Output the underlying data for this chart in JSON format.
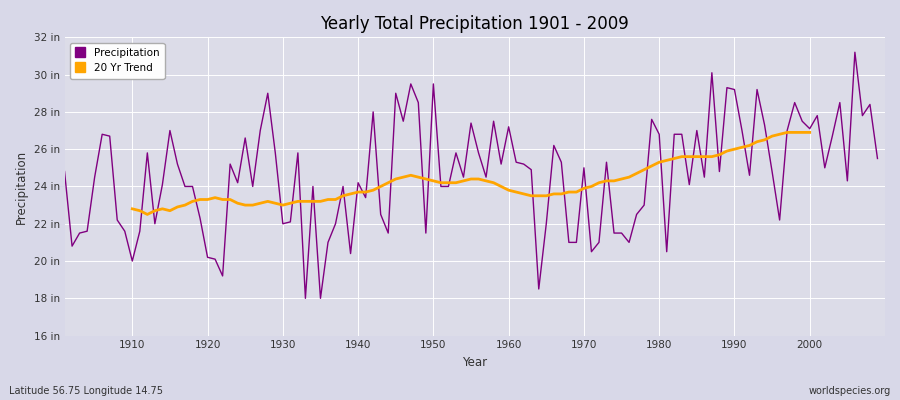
{
  "title": "Yearly Total Precipitation 1901 - 2009",
  "xlabel": "Year",
  "ylabel": "Precipitation",
  "footnote_left": "Latitude 56.75 Longitude 14.75",
  "footnote_right": "worldspecies.org",
  "ylim": [
    16,
    32
  ],
  "yticks": [
    16,
    18,
    20,
    22,
    24,
    26,
    28,
    30,
    32
  ],
  "ytick_labels": [
    "16 in",
    "18 in",
    "20 in",
    "22 in",
    "24 in",
    "26 in",
    "28 in",
    "30 in",
    "32 in"
  ],
  "fig_bg_color": "#d8d8e8",
  "plot_bg_color": "#dcdce8",
  "grid_color": "#c0c0d0",
  "precip_color": "#800080",
  "trend_color": "#FFA500",
  "years": [
    1901,
    1902,
    1903,
    1904,
    1905,
    1906,
    1907,
    1908,
    1909,
    1910,
    1911,
    1912,
    1913,
    1914,
    1915,
    1916,
    1917,
    1918,
    1919,
    1920,
    1921,
    1922,
    1923,
    1924,
    1925,
    1926,
    1927,
    1928,
    1929,
    1930,
    1931,
    1932,
    1933,
    1934,
    1935,
    1936,
    1937,
    1938,
    1939,
    1940,
    1941,
    1942,
    1943,
    1944,
    1945,
    1946,
    1947,
    1948,
    1949,
    1950,
    1951,
    1952,
    1953,
    1954,
    1955,
    1956,
    1957,
    1958,
    1959,
    1960,
    1961,
    1962,
    1963,
    1964,
    1965,
    1966,
    1967,
    1968,
    1969,
    1970,
    1971,
    1972,
    1973,
    1974,
    1975,
    1976,
    1977,
    1978,
    1979,
    1980,
    1981,
    1982,
    1983,
    1984,
    1985,
    1986,
    1987,
    1988,
    1989,
    1990,
    1991,
    1992,
    1993,
    1994,
    1995,
    1996,
    1997,
    1998,
    1999,
    2000,
    2001,
    2002,
    2003,
    2004,
    2005,
    2006,
    2007,
    2008,
    2009
  ],
  "precip": [
    24.8,
    20.8,
    21.5,
    21.6,
    24.5,
    26.8,
    26.7,
    22.2,
    21.6,
    20.0,
    21.6,
    25.8,
    22.0,
    24.1,
    27.0,
    25.2,
    24.0,
    24.0,
    22.3,
    20.2,
    20.1,
    19.2,
    25.2,
    24.2,
    26.6,
    24.0,
    27.0,
    29.0,
    25.8,
    22.0,
    22.1,
    25.8,
    18.0,
    24.0,
    18.0,
    21.0,
    22.0,
    24.0,
    20.4,
    24.2,
    23.4,
    28.0,
    22.5,
    21.5,
    29.0,
    27.5,
    29.5,
    28.5,
    21.5,
    29.5,
    24.0,
    24.0,
    25.8,
    24.5,
    27.4,
    25.8,
    24.5,
    27.5,
    25.2,
    27.2,
    25.3,
    25.2,
    24.9,
    18.5,
    22.0,
    26.2,
    25.3,
    21.0,
    21.0,
    25.0,
    20.5,
    21.0,
    25.3,
    21.5,
    21.5,
    21.0,
    22.5,
    23.0,
    27.6,
    26.8,
    20.5,
    26.8,
    26.8,
    24.1,
    27.0,
    24.5,
    30.1,
    24.8,
    29.3,
    29.2,
    27.0,
    24.6,
    29.2,
    27.3,
    24.8,
    22.2,
    27.0,
    28.5,
    27.5,
    27.1,
    27.8,
    25.0,
    26.7,
    28.5,
    24.3,
    31.2,
    27.8,
    28.4,
    25.5
  ],
  "trend": [
    null,
    null,
    null,
    null,
    null,
    null,
    null,
    null,
    null,
    22.8,
    22.7,
    22.5,
    22.7,
    22.8,
    22.7,
    22.9,
    23.0,
    23.2,
    23.3,
    23.3,
    23.4,
    23.3,
    23.3,
    23.1,
    23.0,
    23.0,
    23.1,
    23.2,
    23.1,
    23.0,
    23.1,
    23.2,
    23.2,
    23.2,
    23.2,
    23.3,
    23.3,
    23.5,
    23.6,
    23.7,
    23.7,
    23.8,
    24.0,
    24.2,
    24.4,
    24.5,
    24.6,
    24.5,
    24.4,
    24.3,
    24.2,
    24.2,
    24.2,
    24.3,
    24.4,
    24.4,
    24.3,
    24.2,
    24.0,
    23.8,
    23.7,
    23.6,
    23.5,
    23.5,
    23.5,
    23.6,
    23.6,
    23.7,
    23.7,
    23.9,
    24.0,
    24.2,
    24.3,
    24.3,
    24.4,
    24.5,
    24.7,
    24.9,
    25.1,
    25.3,
    25.4,
    25.5,
    25.6,
    25.6,
    25.6,
    25.6,
    25.6,
    25.7,
    25.9,
    26.0,
    26.1,
    26.2,
    26.4,
    26.5,
    26.7,
    26.8,
    26.9,
    26.9,
    26.9,
    26.9,
    null,
    null,
    null,
    null,
    null,
    null,
    null,
    null,
    null
  ]
}
